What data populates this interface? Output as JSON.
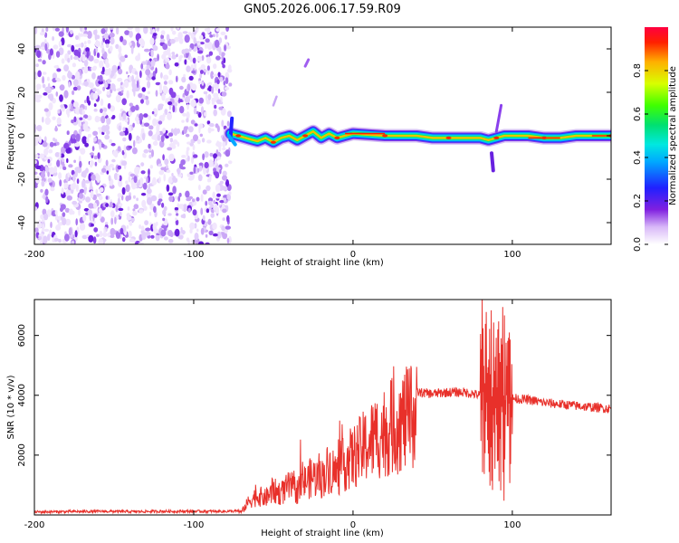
{
  "figure_title": "GN05.2026.006.17.59.R09",
  "colors": {
    "snr_line": "#e8302a",
    "axis": "#000000",
    "colormap": [
      "#ffffff",
      "#e6d8f8",
      "#9b4ff0",
      "#5a10d8",
      "#2222ff",
      "#00a0ff",
      "#00e0e0",
      "#00e070",
      "#70ff00",
      "#d0ff00",
      "#ffb000",
      "#ff2000",
      "#cc0000"
    ]
  },
  "chart_data": [
    {
      "type": "heatmap",
      "title": "GN05.2026.006.17.59.R09",
      "xlabel": "Height of straight line (km)",
      "ylabel": "Frequency (Hz)",
      "xlim": [
        -200,
        162
      ],
      "ylim": [
        -50,
        50
      ],
      "x_ticks": [
        -200,
        -100,
        0,
        100
      ],
      "x_tick_labels": [
        "-200",
        "-100",
        "0",
        "100"
      ],
      "y_ticks": [
        -40,
        -20,
        0,
        20,
        40
      ],
      "y_tick_labels": [
        "-40",
        "-20",
        "0",
        "20",
        "40"
      ],
      "noise_region_x": [
        -200,
        -77
      ],
      "signal_start_x": -77,
      "ridge_frequency": [
        [
          -77,
          1
        ],
        [
          -72,
          0
        ],
        [
          -65,
          -1.5
        ],
        [
          -60,
          -2.5
        ],
        [
          -55,
          -1
        ],
        [
          -50,
          -3
        ],
        [
          -45,
          -1
        ],
        [
          -40,
          0
        ],
        [
          -35,
          -2
        ],
        [
          -30,
          0
        ],
        [
          -25,
          2
        ],
        [
          -20,
          -1
        ],
        [
          -15,
          1
        ],
        [
          -10,
          -1
        ],
        [
          -5,
          0
        ],
        [
          0,
          1
        ],
        [
          10,
          0.5
        ],
        [
          20,
          0
        ],
        [
          30,
          0
        ],
        [
          40,
          0
        ],
        [
          50,
          -1
        ],
        [
          60,
          -1
        ],
        [
          70,
          -1
        ],
        [
          80,
          -1
        ],
        [
          85,
          -2
        ],
        [
          90,
          -1
        ],
        [
          95,
          0
        ],
        [
          100,
          0
        ],
        [
          110,
          0
        ],
        [
          120,
          -1
        ],
        [
          130,
          -1
        ],
        [
          140,
          0
        ],
        [
          150,
          0
        ],
        [
          162,
          0
        ]
      ],
      "colorbar": {
        "label": "Normalized spectral amplitude",
        "range": [
          0,
          1
        ],
        "ticks": [
          0.0,
          0.2,
          0.4,
          0.6,
          0.8
        ],
        "tick_labels": [
          "0.0",
          "0.2",
          "0.4",
          "0.6",
          "0.8"
        ]
      }
    },
    {
      "type": "line",
      "xlabel": "Height of straight line (km)",
      "ylabel": "SNR (10 * v/v)",
      "xlim": [
        -200,
        162
      ],
      "ylim": [
        0,
        7200
      ],
      "x_ticks": [
        -200,
        -100,
        0,
        100
      ],
      "x_tick_labels": [
        "-200",
        "-100",
        "0",
        "100"
      ],
      "y_ticks": [
        2000,
        4000,
        6000
      ],
      "y_tick_labels": [
        "2000",
        "4000",
        "6000"
      ],
      "series": [
        {
          "name": "SNR",
          "x": [
            -200,
            -180,
            -160,
            -140,
            -120,
            -100,
            -80,
            -70,
            -65,
            -60,
            -55,
            -50,
            -45,
            -40,
            -35,
            -30,
            -25,
            -20,
            -15,
            -10,
            -5,
            0,
            5,
            10,
            15,
            20,
            25,
            30,
            35,
            40,
            50,
            60,
            70,
            80,
            85,
            90,
            95,
            100,
            110,
            120,
            130,
            140,
            150,
            162
          ],
          "values": [
            100,
            110,
            120,
            110,
            120,
            120,
            120,
            130,
            600,
            800,
            700,
            1000,
            900,
            1200,
            1000,
            1400,
            1600,
            1500,
            2000,
            1700,
            2200,
            2400,
            2700,
            3000,
            3300,
            3500,
            3700,
            3900,
            4000,
            4100,
            4050,
            4100,
            4100,
            4000,
            4000,
            4000,
            3900,
            3900,
            3850,
            3750,
            3700,
            3650,
            3600,
            3550
          ]
        }
      ]
    }
  ]
}
